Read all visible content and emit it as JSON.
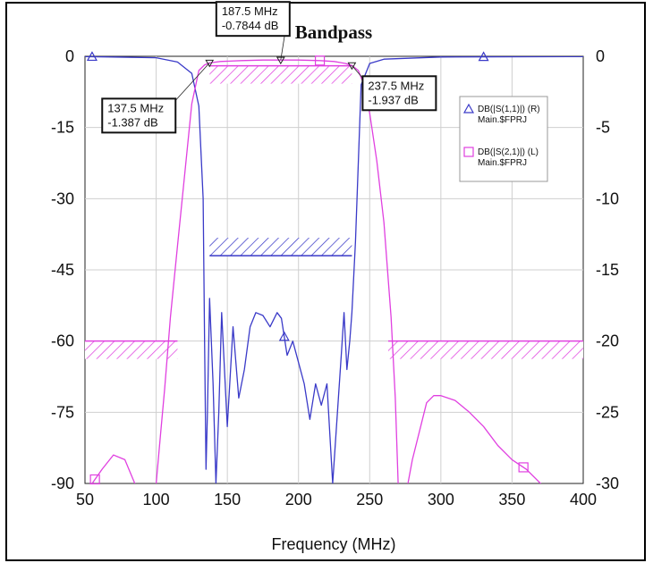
{
  "chart_data": {
    "type": "line",
    "title": "Bandpass",
    "xlabel": "Frequency (MHz)",
    "xlim": [
      50,
      400
    ],
    "ylim_left": [
      -90,
      0
    ],
    "ylim_right": [
      -30,
      0
    ],
    "x_ticks": [
      "50",
      "100",
      "150",
      "200",
      "250",
      "300",
      "350",
      "400"
    ],
    "y_left_ticks": [
      "0",
      "-15",
      "-30",
      "-45",
      "-60",
      "-75",
      "-90"
    ],
    "y_right_ticks": [
      "0",
      "-5",
      "-10",
      "-15",
      "-20",
      "-25",
      "-30"
    ],
    "grid": true,
    "legend_position": "right",
    "series": [
      {
        "name": "DB(|S(1,1)|) (R)",
        "subname": "Main.$FPRJ",
        "axis": "right",
        "color": "#3a3ac8",
        "marker": "triangle",
        "x": [
          50,
          100,
          115,
          125,
          130,
          133,
          134,
          135,
          136,
          137.5,
          140,
          142,
          144,
          146,
          150,
          154,
          158,
          162,
          166,
          170,
          175,
          180,
          185,
          188,
          192,
          196,
          200,
          204,
          208,
          212,
          216,
          220,
          224,
          226,
          228,
          230,
          232,
          234,
          236,
          237.5,
          240,
          244,
          250,
          260,
          300,
          400
        ],
        "y": [
          -0.02,
          -0.1,
          -0.4,
          -1.2,
          -3.5,
          -10,
          -20,
          -29,
          -25,
          -17,
          -23,
          -30,
          -25,
          -18,
          -26,
          -19,
          -24,
          -22,
          -19,
          -18,
          -18.2,
          -19,
          -18,
          -18.4,
          -21,
          -20,
          -21.5,
          -23,
          -25.5,
          -23,
          -24.5,
          -23,
          -30,
          -27,
          -24,
          -21,
          -18,
          -22,
          -20,
          -18,
          -13,
          -2,
          -0.5,
          -0.2,
          -0.05,
          -0.02
        ],
        "markers_x": [
          55,
          190,
          330
        ]
      },
      {
        "name": "DB(|S(2,1)|) (L)",
        "subname": "Main.$FPRJ",
        "axis": "left",
        "color": "#e040e0",
        "marker": "square",
        "x": [
          55,
          62,
          70,
          78,
          85,
          90,
          96,
          100,
          103,
          106,
          110,
          115,
          120,
          125,
          130,
          134,
          137.5,
          145,
          160,
          175,
          187.5,
          200,
          215,
          225,
          233,
          237.5,
          242,
          246,
          250,
          255,
          260,
          265,
          268,
          270,
          275,
          280,
          290,
          295,
          300,
          310,
          320,
          330,
          340,
          350,
          360,
          370,
          380
        ],
        "y": [
          -90,
          -87,
          -84,
          -85,
          -90,
          -93,
          -93,
          -90,
          -80,
          -70,
          -55,
          -40,
          -25,
          -10,
          -3,
          -1.8,
          -1.387,
          -1.1,
          -0.9,
          -0.8,
          -0.7844,
          -0.8,
          -0.9,
          -1.1,
          -1.5,
          -1.937,
          -3,
          -6,
          -12,
          -22,
          -35,
          -55,
          -72,
          -90,
          -93,
          -85,
          -73,
          -71.5,
          -71.5,
          -72.5,
          -75,
          -78,
          -82,
          -85,
          -87,
          -90,
          -95
        ],
        "markers_x": [
          57,
          215,
          358
        ]
      }
    ],
    "masks": [
      {
        "type": "min",
        "x": [
          50,
          115
        ],
        "y": -60,
        "axis": "left"
      },
      {
        "type": "min",
        "x": [
          137.5,
          237.5
        ],
        "y": -2,
        "axis": "left"
      },
      {
        "type": "min",
        "x": [
          263,
          400
        ],
        "y": -60,
        "axis": "left"
      },
      {
        "type": "max",
        "x": [
          137.5,
          237.5
        ],
        "y": -42,
        "axis": "left"
      }
    ],
    "markers": [
      {
        "x": 137.5,
        "y": -1.387,
        "label_freq": "137.5 MHz",
        "label_val": "-1.387 dB"
      },
      {
        "x": 187.5,
        "y": -0.7844,
        "label_freq": "187.5 MHz",
        "label_val": "-0.7844 dB"
      },
      {
        "x": 237.5,
        "y": -1.937,
        "label_freq": "237.5 MHz",
        "label_val": "-1.937 dB"
      }
    ]
  }
}
